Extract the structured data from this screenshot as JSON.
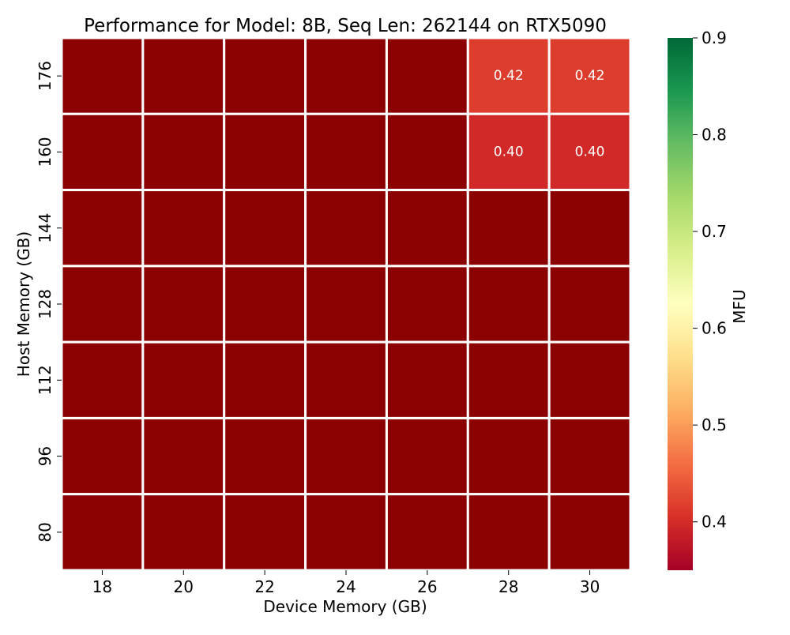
{
  "chart_data": {
    "type": "heatmap",
    "title": "Performance for Model: 8B, Seq Len: 262144 on RTX5090",
    "xlabel": "Device Memory (GB)",
    "ylabel": "Host Memory (GB)",
    "x_categories": [
      "18",
      "20",
      "22",
      "24",
      "26",
      "28",
      "30"
    ],
    "y_categories": [
      "176",
      "160",
      "144",
      "128",
      "112",
      "96",
      "80"
    ],
    "values": [
      [
        null,
        null,
        null,
        null,
        null,
        0.42,
        0.42
      ],
      [
        null,
        null,
        null,
        null,
        null,
        0.4,
        0.4
      ],
      [
        null,
        null,
        null,
        null,
        null,
        null,
        null
      ],
      [
        null,
        null,
        null,
        null,
        null,
        null,
        null
      ],
      [
        null,
        null,
        null,
        null,
        null,
        null,
        null
      ],
      [
        null,
        null,
        null,
        null,
        null,
        null,
        null
      ],
      [
        null,
        null,
        null,
        null,
        null,
        null,
        null
      ]
    ],
    "cell_labels": [
      [
        "",
        "",
        "",
        "",
        "",
        "0.42",
        "0.42"
      ],
      [
        "",
        "",
        "",
        "",
        "",
        "0.40",
        "0.40"
      ],
      [
        "",
        "",
        "",
        "",
        "",
        "",
        ""
      ],
      [
        "",
        "",
        "",
        "",
        "",
        "",
        ""
      ],
      [
        "",
        "",
        "",
        "",
        "",
        "",
        ""
      ],
      [
        "",
        "",
        "",
        "",
        "",
        "",
        ""
      ],
      [
        "",
        "",
        "",
        "",
        "",
        "",
        ""
      ]
    ],
    "missing_color": "#8b0000",
    "cell_colors": {
      "0.42": "#dd3d2d",
      "0.40": "#d02927"
    },
    "colorbar": {
      "label": "MFU",
      "range": [
        0.35,
        0.9
      ],
      "ticks": [
        "0.4",
        "0.5",
        "0.6",
        "0.7",
        "0.8",
        "0.9"
      ],
      "tick_values": [
        0.4,
        0.5,
        0.6,
        0.7,
        0.8,
        0.9
      ],
      "colormap": "RdYlGn",
      "stops": [
        "#a50026",
        "#d73027",
        "#f46d43",
        "#fdae61",
        "#fee08b",
        "#ffffbf",
        "#d9ef8b",
        "#a6d96a",
        "#66bd63",
        "#1a9850",
        "#006837"
      ]
    },
    "grid": true
  }
}
